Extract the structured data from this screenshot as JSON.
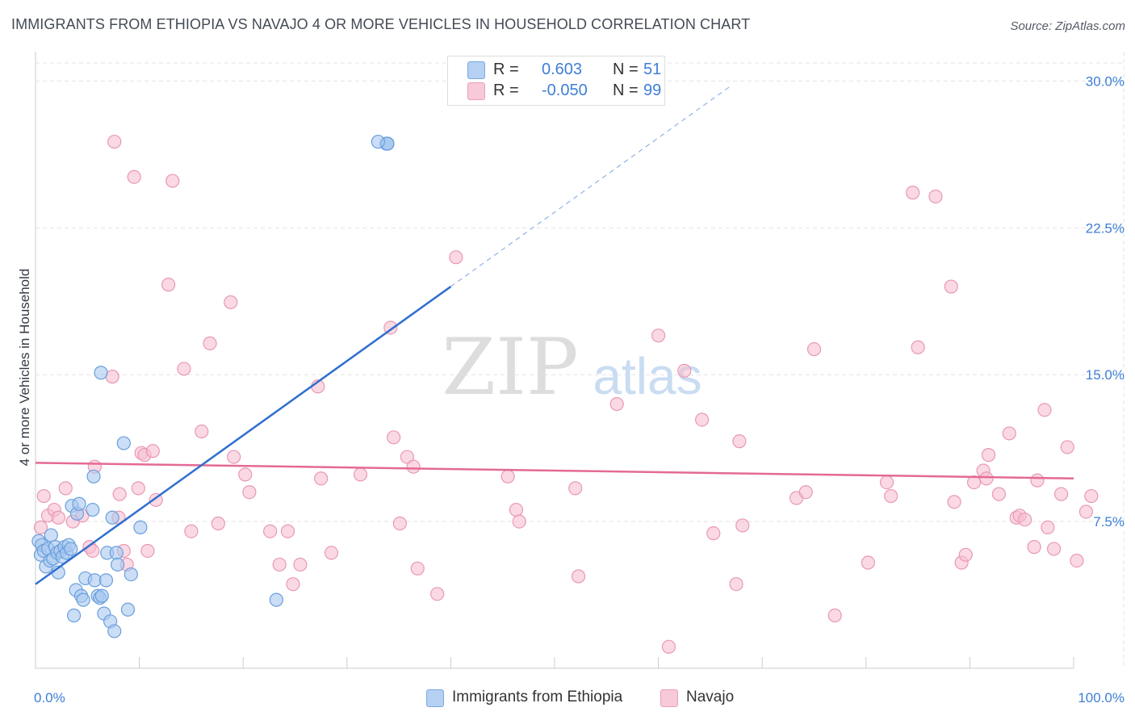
{
  "title": "IMMIGRANTS FROM ETHIOPIA VS NAVAJO 4 OR MORE VEHICLES IN HOUSEHOLD CORRELATION CHART",
  "source": "Source: ZipAtlas.com",
  "watermark": {
    "zip": "ZIP",
    "atlas": "atlas"
  },
  "legend": {
    "rows": [
      {
        "r_label": "R =",
        "r_value": "0.603",
        "n_label": "N =",
        "n_value": "51"
      },
      {
        "r_label": "R =",
        "r_value": "-0.050",
        "n_label": "N =",
        "n_value": "99"
      }
    ]
  },
  "colors": {
    "blue_fill": "#a9c8f0",
    "blue_stroke": "#6a9fdc",
    "blue_line": "#2f6fd0",
    "pink_fill": "#f6bfd1",
    "pink_stroke": "#e998b6",
    "pink_line": "#e46a94",
    "accent_text": "#3d7fd6",
    "grid": "#e3e3e3"
  },
  "chart_data": {
    "type": "scatter",
    "title": "IMMIGRANTS FROM ETHIOPIA VS NAVAJO 4 OR MORE VEHICLES IN HOUSEHOLD CORRELATION CHART",
    "xlabel": "",
    "ylabel": "4 or more Vehicles in Household",
    "xlim": [
      0,
      100
    ],
    "ylim": [
      0,
      31.5
    ],
    "x_tick_labels": [
      {
        "value": 0,
        "label": "0.0%"
      },
      {
        "value": 100,
        "label": "100.0%"
      }
    ],
    "y_tick_labels": [
      {
        "value": 7.5,
        "label": "7.5%"
      },
      {
        "value": 15.0,
        "label": "15.0%"
      },
      {
        "value": 22.5,
        "label": "22.5%"
      },
      {
        "value": 30.0,
        "label": "30.0%"
      }
    ],
    "grid": true,
    "legend_position": "top-center",
    "series": [
      {
        "name": "Immigrants from Ethiopia",
        "color": "#a9c8f0",
        "stats": {
          "R": 0.603,
          "N": 51
        },
        "trend": {
          "x0": 0,
          "y0": 4.3,
          "x1": 40,
          "y1": 19.5,
          "dashed_to_x": 67
        },
        "points": [
          [
            0.3,
            6.5
          ],
          [
            0.5,
            5.8
          ],
          [
            0.6,
            6.3
          ],
          [
            0.8,
            6.0
          ],
          [
            1.0,
            5.2
          ],
          [
            1.2,
            6.1
          ],
          [
            1.4,
            5.5
          ],
          [
            1.5,
            6.8
          ],
          [
            1.7,
            5.6
          ],
          [
            1.9,
            6.2
          ],
          [
            2.1,
            5.9
          ],
          [
            2.2,
            4.9
          ],
          [
            2.4,
            6.0
          ],
          [
            2.6,
            5.7
          ],
          [
            2.8,
            6.2
          ],
          [
            3.0,
            5.9
          ],
          [
            3.2,
            6.3
          ],
          [
            3.4,
            6.1
          ],
          [
            3.5,
            8.3
          ],
          [
            3.7,
            2.7
          ],
          [
            3.9,
            4.0
          ],
          [
            4.0,
            7.9
          ],
          [
            4.2,
            8.4
          ],
          [
            4.4,
            3.7
          ],
          [
            4.6,
            3.5
          ],
          [
            4.8,
            4.6
          ],
          [
            5.5,
            8.1
          ],
          [
            5.6,
            9.8
          ],
          [
            5.7,
            4.5
          ],
          [
            6.0,
            3.7
          ],
          [
            6.2,
            3.6
          ],
          [
            6.4,
            3.7
          ],
          [
            6.3,
            15.1
          ],
          [
            6.6,
            2.8
          ],
          [
            6.8,
            4.5
          ],
          [
            6.9,
            5.9
          ],
          [
            7.2,
            2.4
          ],
          [
            7.4,
            7.7
          ],
          [
            7.6,
            1.9
          ],
          [
            7.8,
            5.9
          ],
          [
            7.9,
            5.3
          ],
          [
            8.5,
            11.5
          ],
          [
            8.9,
            3.0
          ],
          [
            9.2,
            4.8
          ],
          [
            10.1,
            7.2
          ],
          [
            23.2,
            3.5
          ],
          [
            33.8,
            26.8
          ],
          [
            33.9,
            26.8
          ],
          [
            33.9,
            26.8
          ],
          [
            33.9,
            26.8
          ],
          [
            33.0,
            26.9
          ]
        ]
      },
      {
        "name": "Navajo",
        "color": "#f6bfd1",
        "stats": {
          "R": -0.05,
          "N": 99
        },
        "trend": {
          "x0": 0,
          "y0": 10.5,
          "x1": 100,
          "y1": 9.7
        },
        "points": [
          [
            0.5,
            7.2
          ],
          [
            0.8,
            8.8
          ],
          [
            1.2,
            7.8
          ],
          [
            1.8,
            8.1
          ],
          [
            2.2,
            7.7
          ],
          [
            2.9,
            9.2
          ],
          [
            3.6,
            7.5
          ],
          [
            4.5,
            7.8
          ],
          [
            5.2,
            6.2
          ],
          [
            5.5,
            6.0
          ],
          [
            5.7,
            10.3
          ],
          [
            7.4,
            14.9
          ],
          [
            7.6,
            26.9
          ],
          [
            8.0,
            7.7
          ],
          [
            8.1,
            8.9
          ],
          [
            8.5,
            6.0
          ],
          [
            8.8,
            5.3
          ],
          [
            9.5,
            25.1
          ],
          [
            9.9,
            9.2
          ],
          [
            10.2,
            11.0
          ],
          [
            10.5,
            10.9
          ],
          [
            10.8,
            6.0
          ],
          [
            11.3,
            11.1
          ],
          [
            11.6,
            8.6
          ],
          [
            12.8,
            19.6
          ],
          [
            13.2,
            24.9
          ],
          [
            14.3,
            15.3
          ],
          [
            15.0,
            7.0
          ],
          [
            16.0,
            12.1
          ],
          [
            16.8,
            16.6
          ],
          [
            17.6,
            7.4
          ],
          [
            18.8,
            18.7
          ],
          [
            19.1,
            10.8
          ],
          [
            20.2,
            9.9
          ],
          [
            20.6,
            9.0
          ],
          [
            22.6,
            7.0
          ],
          [
            23.5,
            5.3
          ],
          [
            24.3,
            7.0
          ],
          [
            24.8,
            4.3
          ],
          [
            25.5,
            5.3
          ],
          [
            27.2,
            14.4
          ],
          [
            27.5,
            9.7
          ],
          [
            28.5,
            5.9
          ],
          [
            31.3,
            9.9
          ],
          [
            34.2,
            17.4
          ],
          [
            34.5,
            11.8
          ],
          [
            35.1,
            7.4
          ],
          [
            35.8,
            10.8
          ],
          [
            36.4,
            10.3
          ],
          [
            36.8,
            5.1
          ],
          [
            38.7,
            3.8
          ],
          [
            40.5,
            21.0
          ],
          [
            45.5,
            9.8
          ],
          [
            46.3,
            8.1
          ],
          [
            46.6,
            7.5
          ],
          [
            52.0,
            9.2
          ],
          [
            52.3,
            4.7
          ],
          [
            56.0,
            13.5
          ],
          [
            60.0,
            17.0
          ],
          [
            61.0,
            1.1
          ],
          [
            62.5,
            15.2
          ],
          [
            64.2,
            12.7
          ],
          [
            65.3,
            6.9
          ],
          [
            67.5,
            4.3
          ],
          [
            67.8,
            11.6
          ],
          [
            68.1,
            7.3
          ],
          [
            73.3,
            8.7
          ],
          [
            74.2,
            9.0
          ],
          [
            75.0,
            16.3
          ],
          [
            77.0,
            2.7
          ],
          [
            80.2,
            5.4
          ],
          [
            82.0,
            9.5
          ],
          [
            82.4,
            8.8
          ],
          [
            84.5,
            24.3
          ],
          [
            85.0,
            16.4
          ],
          [
            86.7,
            24.1
          ],
          [
            88.2,
            19.5
          ],
          [
            88.5,
            8.5
          ],
          [
            89.2,
            5.4
          ],
          [
            89.6,
            5.8
          ],
          [
            90.4,
            9.5
          ],
          [
            91.3,
            10.1
          ],
          [
            91.6,
            9.7
          ],
          [
            91.8,
            10.9
          ],
          [
            92.8,
            8.9
          ],
          [
            93.8,
            12.0
          ],
          [
            94.5,
            7.7
          ],
          [
            94.8,
            7.8
          ],
          [
            95.3,
            7.6
          ],
          [
            96.2,
            6.2
          ],
          [
            96.5,
            9.6
          ],
          [
            97.2,
            13.2
          ],
          [
            97.5,
            7.2
          ],
          [
            98.1,
            6.1
          ],
          [
            98.8,
            8.9
          ],
          [
            99.4,
            11.3
          ],
          [
            100.3,
            5.5
          ],
          [
            101.2,
            8.0
          ],
          [
            101.7,
            8.8
          ]
        ]
      }
    ]
  },
  "bottom_legend": [
    {
      "label": "Immigrants from Ethiopia"
    },
    {
      "label": "Navajo"
    }
  ]
}
